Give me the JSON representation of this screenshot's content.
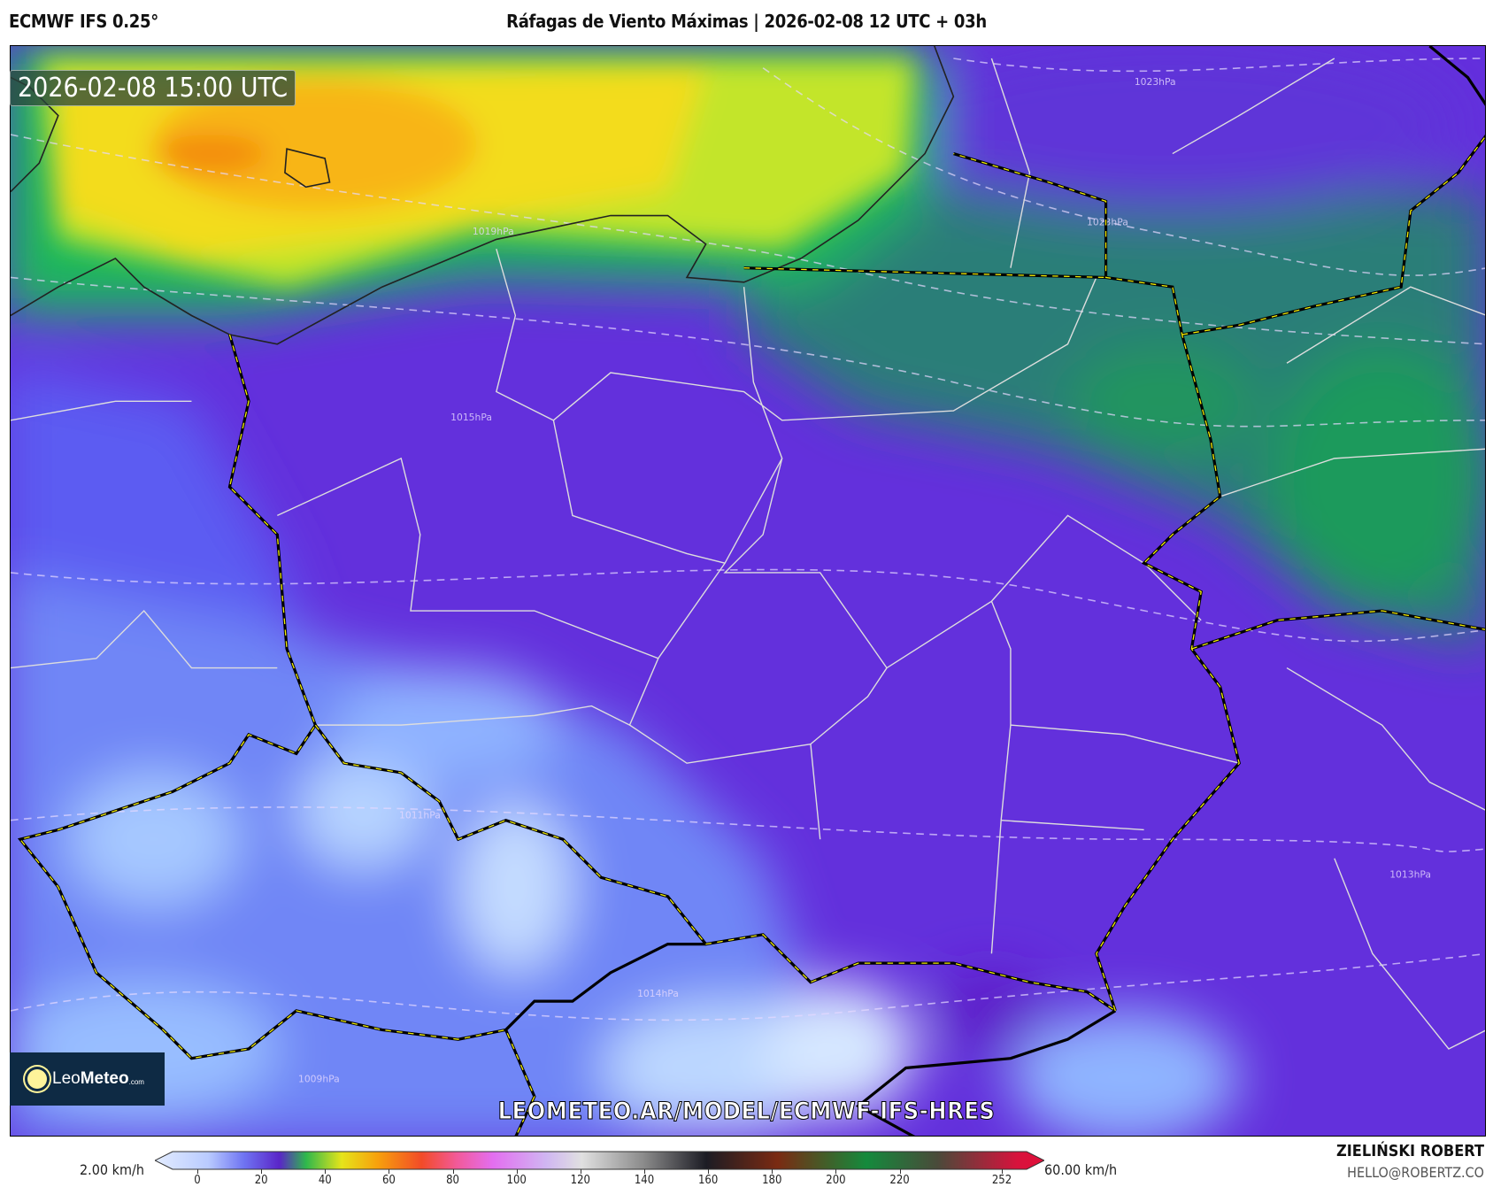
{
  "header": {
    "model": "ECMWF IFS 0.25°",
    "title": "Ráfagas de Viento Máximas | 2026-02-08 12 UTC + 03h"
  },
  "map": {
    "valid_time": "2026-02-08 15:00 UTC",
    "watermark": "LEOMETEO.AR/MODEL/ECMWF-IFS-HRES",
    "isobar_labels": [
      "1023hPa",
      "1023hPa",
      "1019hPa",
      "1015hPa",
      "1011hPa",
      "1013hPa",
      "1014hPa",
      "1009hPa"
    ],
    "colors": {
      "low": "#a9cdff",
      "mid": "#5b55f0",
      "purple": "#6a2bd8",
      "green": "#1f9a5c",
      "yellow": "#eee21c",
      "orange": "#f7a10c"
    }
  },
  "logo": {
    "part1": "Leo",
    "part2": "Meteo",
    "part3": ".com"
  },
  "colorbar": {
    "min_label": "2.00 km/h",
    "max_label": "60.00 km/h",
    "range": [
      0,
      252
    ],
    "ticks": [
      0,
      20,
      40,
      60,
      80,
      100,
      120,
      140,
      160,
      180,
      200,
      220,
      252
    ],
    "tick_labels": [
      "0",
      "20",
      "40",
      "60",
      "80",
      "100",
      "120",
      "140",
      "160",
      "180",
      "200",
      "220",
      "252"
    ]
  },
  "author": {
    "name": "ZIELIŃSKI ROBERT",
    "email": "HELLO@ROBERTZ.CO"
  }
}
